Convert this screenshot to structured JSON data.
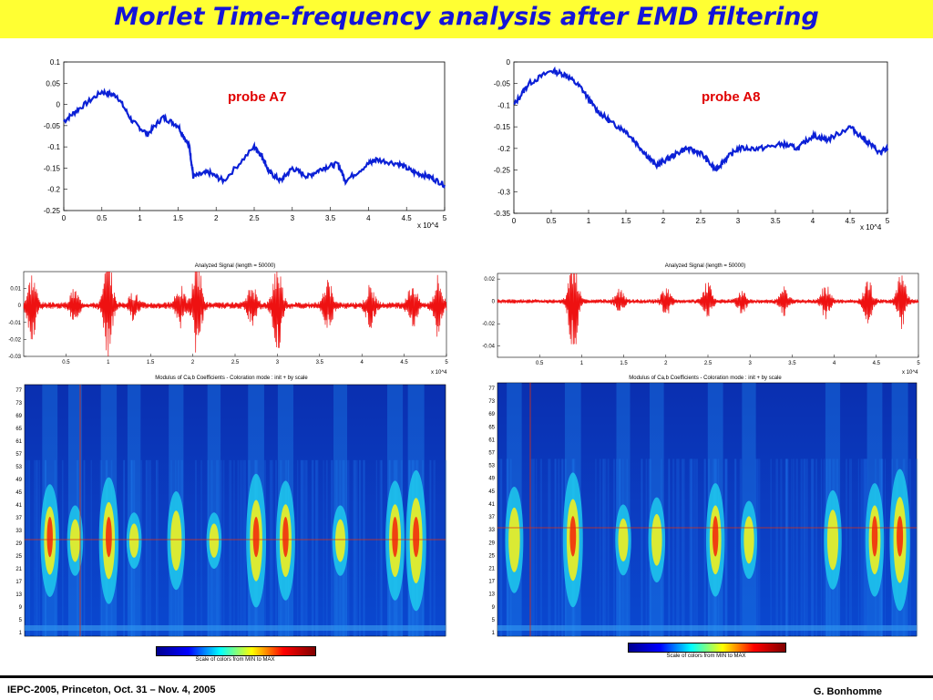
{
  "title": "Morlet Time-frequency analysis after EMD filtering",
  "footer": {
    "left": "IEPC-2005, Princeton, Oct. 31 – Nov. 4, 2005",
    "right": "G. Bonhomme"
  },
  "colors": {
    "title_bg": "#ffff33",
    "title_text": "#1414d8",
    "signal_blue": "#0b20d6",
    "signal_red": "#ee1111",
    "probe_label": "#e00000"
  },
  "chart_data": [
    {
      "type": "line",
      "label": "probe A7",
      "x_multiplier": "x 10^4",
      "xlim": [
        0,
        5
      ],
      "ylim": [
        -0.25,
        0.1
      ],
      "xticks": [
        "0",
        "0.5",
        "1",
        "1.5",
        "2",
        "2.5",
        "3",
        "3.5",
        "4",
        "4.5",
        "5"
      ],
      "yticks": [
        "0.1",
        "0.05",
        "0",
        "-0.05",
        "-0.1",
        "-0.15",
        "-0.2",
        "-0.25"
      ],
      "x": [
        0,
        0.2,
        0.5,
        0.7,
        0.9,
        1.1,
        1.3,
        1.5,
        1.65,
        1.7,
        1.9,
        2.1,
        2.5,
        2.6,
        2.7,
        2.85,
        3.0,
        3.2,
        3.4,
        3.6,
        3.7,
        4.0,
        4.1,
        4.4,
        4.6,
        4.8,
        5.0
      ],
      "y": [
        -0.04,
        -0.01,
        0.03,
        0.02,
        -0.04,
        -0.07,
        -0.03,
        -0.05,
        -0.1,
        -0.17,
        -0.16,
        -0.18,
        -0.1,
        -0.12,
        -0.16,
        -0.18,
        -0.15,
        -0.17,
        -0.15,
        -0.14,
        -0.18,
        -0.14,
        -0.13,
        -0.14,
        -0.16,
        -0.17,
        -0.19
      ]
    },
    {
      "type": "line",
      "label": "probe A8",
      "x_multiplier": "x 10^4",
      "xlim": [
        0,
        5
      ],
      "ylim": [
        -0.35,
        0
      ],
      "xticks": [
        "0",
        "0.5",
        "1",
        "1.5",
        "2",
        "2.5",
        "3",
        "3.5",
        "4",
        "4.5",
        "5"
      ],
      "yticks": [
        "0",
        "-0.05",
        "-0.1",
        "-0.15",
        "-0.2",
        "-0.25",
        "-0.3",
        "-0.35"
      ],
      "x": [
        0,
        0.2,
        0.5,
        0.7,
        0.9,
        1.1,
        1.3,
        1.5,
        1.7,
        1.9,
        2.1,
        2.3,
        2.5,
        2.7,
        2.8,
        3.0,
        3.3,
        3.6,
        3.8,
        4.0,
        4.2,
        4.5,
        4.7,
        4.9,
        5.0
      ],
      "y": [
        -0.1,
        -0.05,
        -0.02,
        -0.03,
        -0.06,
        -0.11,
        -0.14,
        -0.16,
        -0.2,
        -0.24,
        -0.22,
        -0.2,
        -0.21,
        -0.25,
        -0.23,
        -0.2,
        -0.2,
        -0.19,
        -0.2,
        -0.17,
        -0.18,
        -0.15,
        -0.18,
        -0.21,
        -0.2
      ]
    },
    {
      "type": "line",
      "title": "Analyzed Signal  (length = 50000)",
      "x_multiplier": "x 10^4",
      "xlim": [
        0,
        5
      ],
      "ylim": [
        -0.03,
        0.02
      ],
      "xticks": [
        "0.5",
        "1",
        "1.5",
        "2",
        "2.5",
        "3",
        "3.5",
        "4",
        "4.5",
        "5"
      ],
      "yticks": [
        "0.01",
        "0",
        "-0.01",
        "-0.02",
        "-0.03"
      ],
      "bursts": [
        {
          "x": 0.1,
          "amp": 0.02
        },
        {
          "x": 0.6,
          "amp": 0.009
        },
        {
          "x": 1.0,
          "amp": 0.03
        },
        {
          "x": 1.3,
          "amp": 0.008
        },
        {
          "x": 1.85,
          "amp": 0.012
        },
        {
          "x": 2.05,
          "amp": 0.03
        },
        {
          "x": 2.7,
          "amp": 0.012
        },
        {
          "x": 3.0,
          "amp": 0.03
        },
        {
          "x": 3.6,
          "amp": 0.015
        },
        {
          "x": 4.1,
          "amp": 0.012
        },
        {
          "x": 4.6,
          "amp": 0.015
        },
        {
          "x": 4.9,
          "amp": 0.018
        }
      ]
    },
    {
      "type": "line",
      "title": "Analyzed Signal  (length = 50000)",
      "x_multiplier": "x 10^4",
      "xlim": [
        0,
        5
      ],
      "ylim": [
        -0.05,
        0.025
      ],
      "xticks": [
        "0.5",
        "1",
        "1.5",
        "2",
        "2.5",
        "3",
        "3.5",
        "4",
        "4.5",
        "5"
      ],
      "yticks": [
        "0.02",
        "0",
        "-0.02",
        "-0.04"
      ],
      "bursts": [
        {
          "x": 0.9,
          "amp": 0.05
        },
        {
          "x": 1.45,
          "amp": 0.01
        },
        {
          "x": 2.0,
          "amp": 0.012
        },
        {
          "x": 2.5,
          "amp": 0.018
        },
        {
          "x": 2.9,
          "amp": 0.01
        },
        {
          "x": 3.4,
          "amp": 0.012
        },
        {
          "x": 3.9,
          "amp": 0.015
        },
        {
          "x": 4.4,
          "amp": 0.02
        },
        {
          "x": 4.8,
          "amp": 0.025
        }
      ]
    },
    {
      "type": "heatmap",
      "title": "Modulus of Ca,b Coefficients  -  Coloration mode : init + by scale",
      "yticks": [
        "77",
        "73",
        "69",
        "65",
        "61",
        "57",
        "53",
        "49",
        "45",
        "41",
        "37",
        "33",
        "29",
        "25",
        "21",
        "17",
        "13",
        "9",
        "5",
        "1"
      ],
      "colorbar_caption": "Scale of colors from MIN to MAX",
      "events": [
        {
          "x": 0.06,
          "level": 0.8
        },
        {
          "x": 0.12,
          "level": 0.5
        },
        {
          "x": 0.2,
          "level": 0.9
        },
        {
          "x": 0.26,
          "level": 0.4
        },
        {
          "x": 0.36,
          "level": 0.7
        },
        {
          "x": 0.45,
          "level": 0.4
        },
        {
          "x": 0.55,
          "level": 0.95
        },
        {
          "x": 0.62,
          "level": 0.85
        },
        {
          "x": 0.75,
          "level": 0.5
        },
        {
          "x": 0.88,
          "level": 0.85
        },
        {
          "x": 0.93,
          "level": 1.0
        }
      ]
    },
    {
      "type": "heatmap",
      "title": "Modulus of Ca,b Coefficients  -  Coloration mode : init + by scale",
      "yticks": [
        "77",
        "73",
        "69",
        "65",
        "61",
        "57",
        "53",
        "49",
        "45",
        "41",
        "37",
        "33",
        "29",
        "25",
        "21",
        "17",
        "13",
        "9",
        "5",
        "1"
      ],
      "colorbar_caption": "Scale of colors from MIN to MAX",
      "events": [
        {
          "x": 0.04,
          "level": 0.75
        },
        {
          "x": 0.18,
          "level": 0.95
        },
        {
          "x": 0.3,
          "level": 0.5
        },
        {
          "x": 0.38,
          "level": 0.6
        },
        {
          "x": 0.52,
          "level": 0.8
        },
        {
          "x": 0.6,
          "level": 0.55
        },
        {
          "x": 0.8,
          "level": 0.7
        },
        {
          "x": 0.9,
          "level": 0.8
        },
        {
          "x": 0.96,
          "level": 1.0
        }
      ]
    }
  ]
}
